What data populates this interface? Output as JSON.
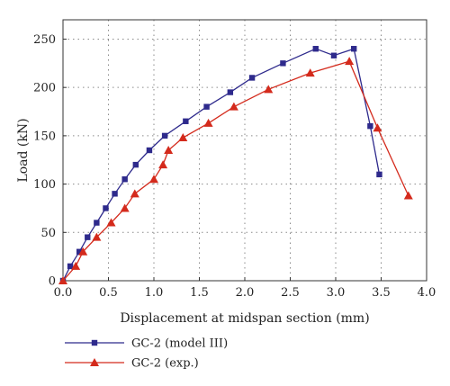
{
  "chart_data": {
    "type": "line",
    "xlabel": "Displacement at midspan section (mm)",
    "ylabel": "Load (kN)",
    "xlim": [
      0,
      4.0
    ],
    "ylim": [
      0,
      270
    ],
    "xticks": [
      0.0,
      0.5,
      1.0,
      1.5,
      2.0,
      2.5,
      3.0,
      3.5,
      4.0
    ],
    "xtick_labels": [
      "0.0",
      "0.5",
      "1.0",
      "1.5",
      "2.0",
      "2.5",
      "3.0",
      "3.5",
      "4.0"
    ],
    "yticks": [
      0,
      50,
      100,
      150,
      200,
      250
    ],
    "ytick_labels": [
      "0",
      "50",
      "100",
      "150",
      "200",
      "250"
    ],
    "grid": true,
    "legend_position": "below",
    "series": [
      {
        "name": "GC-2 (model III)",
        "color": "#2e2a8c",
        "marker": "square",
        "x": [
          0.0,
          0.08,
          0.18,
          0.27,
          0.37,
          0.47,
          0.57,
          0.68,
          0.8,
          0.95,
          1.12,
          1.35,
          1.58,
          1.84,
          2.08,
          2.42,
          2.78,
          2.98,
          3.2,
          3.38,
          3.48
        ],
        "y": [
          0,
          15,
          30,
          45,
          60,
          75,
          90,
          105,
          120,
          135,
          150,
          165,
          180,
          195,
          210,
          225,
          240,
          233,
          240,
          160,
          110
        ]
      },
      {
        "name": "GC-2 (exp.)",
        "color": "#d42a1c",
        "marker": "triangle",
        "x": [
          0.0,
          0.14,
          0.22,
          0.37,
          0.53,
          0.68,
          0.79,
          1.0,
          1.1,
          1.16,
          1.32,
          1.6,
          1.88,
          2.26,
          2.72,
          3.15,
          3.46,
          3.8
        ],
        "y": [
          0,
          15,
          30,
          45,
          60,
          75,
          90,
          105,
          120,
          135,
          148,
          163,
          180,
          198,
          215,
          227,
          158,
          88
        ]
      }
    ]
  }
}
